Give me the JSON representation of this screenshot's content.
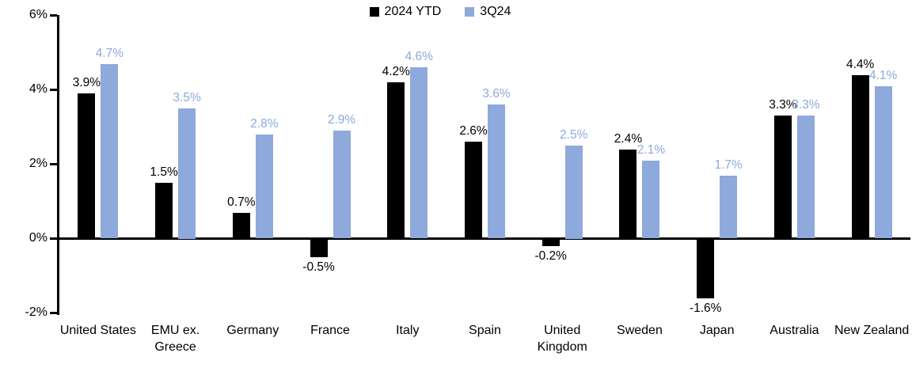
{
  "chart_data": {
    "type": "bar",
    "title": "",
    "categories": [
      "United States",
      "EMU ex. Greece",
      "Germany",
      "France",
      "Italy",
      "Spain",
      "United Kingdom",
      "Sweden",
      "Japan",
      "Australia",
      "New Zealand"
    ],
    "series": [
      {
        "name": "2024 YTD",
        "color": "#000000",
        "values": [
          3.9,
          1.5,
          0.7,
          -0.5,
          4.2,
          2.6,
          -0.2,
          2.4,
          -1.6,
          3.3,
          4.4
        ]
      },
      {
        "name": "3Q24",
        "color": "#8EA9DB",
        "values": [
          4.7,
          3.5,
          2.8,
          2.9,
          4.6,
          3.6,
          2.5,
          2.1,
          1.7,
          3.3,
          4.1
        ]
      }
    ],
    "value_suffix": "%",
    "ylim": [
      -2,
      6
    ],
    "ytick_values": [
      6,
      4,
      2,
      0,
      -2
    ],
    "ytick_labels": [
      "6%",
      "4%",
      "2%",
      "0%",
      "-2%"
    ],
    "legend_position": "top-center",
    "grid": false,
    "axis_color": "#000000",
    "background_color": "#ffffff"
  }
}
